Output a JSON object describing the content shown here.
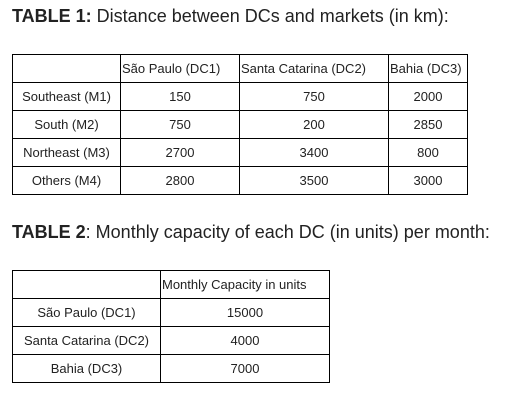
{
  "table1": {
    "label": "TABLE 1:",
    "caption": " Distance between DCs and markets (in km):",
    "headers": [
      "",
      "São Paulo (DC1)",
      "Santa Catarina (DC2)",
      "Bahia (DC3)"
    ],
    "rows": [
      [
        "Southeast (M1)",
        "150",
        "750",
        "2000"
      ],
      [
        "South (M2)",
        "750",
        "200",
        "2850"
      ],
      [
        "Northeast (M3)",
        "2700",
        "3400",
        "800"
      ],
      [
        "Others (M4)",
        "2800",
        "3500",
        "3000"
      ]
    ]
  },
  "table2": {
    "label": "TABLE 2",
    "caption": ": Monthly capacity of each DC (in units) per month:",
    "headers": [
      "",
      "Monthly Capacity in units"
    ],
    "rows": [
      [
        "São Paulo (DC1)",
        "15000"
      ],
      [
        "Santa Catarina (DC2)",
        "4000"
      ],
      [
        "Bahia (DC3)",
        "7000"
      ]
    ]
  }
}
